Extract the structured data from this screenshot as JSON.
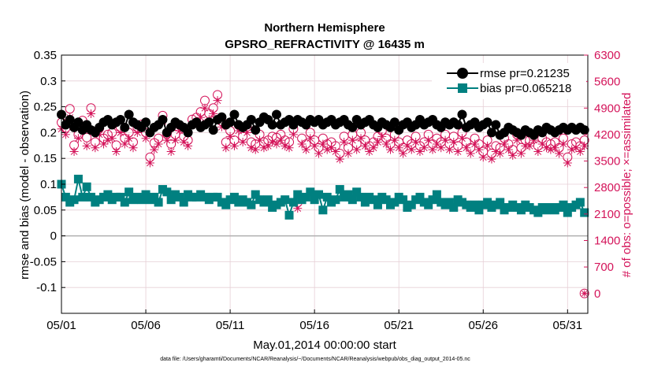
{
  "chart_data": {
    "type": "line",
    "title": "Northern Hemisphere",
    "subtitle": "GPSRO_REFRACTIVITY @ 16435 m",
    "xlabel": "May.01,2014 00:00:00 start",
    "ylabel": "rmse and bias (model - observation)",
    "y2label": "# of obs: o=possible; ×=assimilated",
    "xlim": [
      0,
      31.2
    ],
    "ylim": [
      -0.15,
      0.35
    ],
    "y2lim": [
      -525,
      6300
    ],
    "x_ticks": [
      0,
      5,
      10,
      15,
      20,
      25,
      30
    ],
    "x_tick_labels": [
      "05/01",
      "05/06",
      "05/11",
      "05/16",
      "05/21",
      "05/26",
      "05/31"
    ],
    "y_ticks": [
      -0.1,
      -0.05,
      0,
      0.05,
      0.1,
      0.15,
      0.2,
      0.25,
      0.3,
      0.35
    ],
    "y_tick_labels": [
      "-0.1",
      "-0.05",
      "0",
      "0.05",
      "0.1",
      "0.15",
      "0.2",
      "0.25",
      "0.3",
      "0.35"
    ],
    "y2_ticks": [
      0,
      700,
      1400,
      2100,
      2800,
      3500,
      4200,
      4900,
      5600,
      6300
    ],
    "y2_tick_labels": [
      "0",
      "700",
      "1400",
      "2100",
      "2800",
      "3500",
      "4200",
      "4900",
      "5600",
      "6300"
    ],
    "grid": true,
    "legend_position": "top-right",
    "x": [
      0.0,
      0.25,
      0.5,
      0.75,
      1.0,
      1.25,
      1.5,
      1.75,
      2.0,
      2.25,
      2.5,
      2.75,
      3.0,
      3.25,
      3.5,
      3.75,
      4.0,
      4.25,
      4.5,
      4.75,
      5.0,
      5.25,
      5.5,
      5.75,
      6.0,
      6.25,
      6.5,
      6.75,
      7.0,
      7.25,
      7.5,
      7.75,
      8.0,
      8.25,
      8.5,
      8.75,
      9.0,
      9.25,
      9.5,
      9.75,
      10.0,
      10.25,
      10.5,
      10.75,
      11.0,
      11.25,
      11.5,
      11.75,
      12.0,
      12.25,
      12.5,
      12.75,
      13.0,
      13.25,
      13.5,
      13.75,
      14.0,
      14.25,
      14.5,
      14.75,
      15.0,
      15.25,
      15.5,
      15.75,
      16.0,
      16.25,
      16.5,
      16.75,
      17.0,
      17.25,
      17.5,
      17.75,
      18.0,
      18.25,
      18.5,
      18.75,
      19.0,
      19.25,
      19.5,
      19.75,
      20.0,
      20.25,
      20.5,
      20.75,
      21.0,
      21.25,
      21.5,
      21.75,
      22.0,
      22.25,
      22.5,
      22.75,
      23.0,
      23.25,
      23.5,
      23.75,
      24.0,
      24.25,
      24.5,
      24.75,
      25.0,
      25.25,
      25.5,
      25.75,
      26.0,
      26.25,
      26.5,
      26.75,
      27.0,
      27.25,
      27.5,
      27.75,
      28.0,
      28.25,
      28.5,
      28.75,
      29.0,
      29.25,
      29.5,
      29.75,
      30.0,
      30.25,
      30.5,
      30.75,
      31.0
    ],
    "series": [
      {
        "name": "rmse pr=0.21235",
        "axis": "left",
        "color": "#000000",
        "marker": "circle",
        "values": [
          0.235,
          0.215,
          0.225,
          0.21,
          0.22,
          0.205,
          0.215,
          0.205,
          0.2,
          0.21,
          0.22,
          0.225,
          0.215,
          0.22,
          0.225,
          0.21,
          0.235,
          0.22,
          0.215,
          0.21,
          0.22,
          0.2,
          0.21,
          0.215,
          0.225,
          0.2,
          0.21,
          0.22,
          0.215,
          0.21,
          0.2,
          0.215,
          0.22,
          0.21,
          0.215,
          0.22,
          0.205,
          0.225,
          0.23,
          0.215,
          0.22,
          0.235,
          0.215,
          0.21,
          0.215,
          0.225,
          0.205,
          0.22,
          0.23,
          0.225,
          0.215,
          0.235,
          0.215,
          0.22,
          0.225,
          0.215,
          0.225,
          0.22,
          0.215,
          0.225,
          0.22,
          0.225,
          0.215,
          0.22,
          0.225,
          0.215,
          0.22,
          0.225,
          0.215,
          0.21,
          0.225,
          0.215,
          0.22,
          0.225,
          0.215,
          0.21,
          0.22,
          0.215,
          0.21,
          0.22,
          0.205,
          0.215,
          0.22,
          0.21,
          0.215,
          0.225,
          0.215,
          0.22,
          0.225,
          0.215,
          0.21,
          0.22,
          0.215,
          0.22,
          0.215,
          0.235,
          0.21,
          0.215,
          0.22,
          0.21,
          0.215,
          0.22,
          0.2,
          0.215,
          0.195,
          0.2,
          0.21,
          0.205,
          0.2,
          0.195,
          0.205,
          0.2,
          0.195,
          0.205,
          0.2,
          0.21,
          0.205,
          0.2,
          0.205,
          0.21,
          0.205,
          0.21,
          0.205,
          0.21,
          0.205
        ]
      },
      {
        "name": "bias pr=0.065218",
        "axis": "left",
        "color": "#008080",
        "marker": "square",
        "values": [
          0.1,
          0.075,
          0.065,
          0.07,
          0.11,
          0.075,
          0.095,
          0.075,
          0.065,
          0.07,
          0.075,
          0.08,
          0.07,
          0.075,
          0.075,
          0.065,
          0.085,
          0.07,
          0.075,
          0.07,
          0.08,
          0.07,
          0.075,
          0.065,
          0.09,
          0.085,
          0.07,
          0.08,
          0.075,
          0.065,
          0.08,
          0.075,
          0.075,
          0.08,
          0.075,
          0.07,
          0.075,
          0.075,
          0.065,
          0.06,
          0.07,
          0.075,
          0.065,
          0.07,
          0.065,
          0.06,
          0.08,
          0.07,
          0.065,
          0.07,
          0.055,
          0.06,
          0.065,
          0.07,
          0.04,
          0.065,
          0.08,
          0.07,
          0.075,
          0.085,
          0.07,
          0.08,
          0.05,
          0.075,
          0.065,
          0.07,
          0.09,
          0.075,
          0.08,
          0.07,
          0.085,
          0.075,
          0.065,
          0.075,
          0.07,
          0.06,
          0.075,
          0.07,
          0.06,
          0.065,
          0.075,
          0.07,
          0.055,
          0.06,
          0.07,
          0.075,
          0.065,
          0.06,
          0.07,
          0.08,
          0.065,
          0.06,
          0.065,
          0.055,
          0.07,
          0.065,
          0.06,
          0.055,
          0.06,
          0.05,
          0.06,
          0.065,
          0.055,
          0.06,
          0.065,
          0.05,
          0.055,
          0.06,
          0.055,
          0.05,
          0.06,
          0.055,
          0.05,
          0.045,
          0.055,
          0.05,
          0.055,
          0.05,
          0.055,
          0.06,
          0.045,
          0.055,
          0.06,
          0.065,
          0.045
        ]
      },
      {
        "name": "possible",
        "axis": "right",
        "color": "#d4145a",
        "marker": "open-circle",
        "values": [
          4520,
          4370,
          4880,
          3920,
          4200,
          4570,
          4120,
          4900,
          4000,
          4370,
          4100,
          4200,
          4250,
          3920,
          4380,
          4100,
          4250,
          4000,
          4380,
          4470,
          4250,
          3600,
          3980,
          4100,
          4700,
          4220,
          3950,
          4200,
          4450,
          4150,
          4050,
          4600,
          4650,
          4800,
          5100,
          4750,
          4900,
          5250,
          4550,
          4000,
          4300,
          4050,
          4450,
          4150,
          4400,
          4000,
          3950,
          4200,
          4000,
          4050,
          4150,
          4120,
          4200,
          4050,
          4000,
          4350,
          2400,
          4100,
          3950,
          4250,
          4050,
          3850,
          4100,
          3950,
          4000,
          3900,
          3700,
          4150,
          3850,
          4200,
          3950,
          4250,
          4050,
          3900,
          4000,
          4150,
          4300,
          4100,
          3950,
          4200,
          4000,
          3850,
          4050,
          3950,
          4150,
          3900,
          4000,
          4200,
          3950,
          4100,
          4000,
          4200,
          3950,
          4150,
          3900,
          4250,
          4000,
          3850,
          4100,
          3950,
          3750,
          4050,
          3700,
          3900,
          3850,
          4100,
          3950,
          3800,
          4200,
          3850,
          4050,
          4050,
          4200,
          3900,
          4100,
          4000,
          3950,
          4000,
          3850,
          4100,
          3600,
          3950,
          4000,
          3900,
          4050
        ]
      },
      {
        "name": "assimilated",
        "axis": "right",
        "color": "#d4145a",
        "marker": "asterisk",
        "values": [
          4350,
          4200,
          4650,
          3750,
          4100,
          4450,
          3900,
          4750,
          3850,
          4200,
          3950,
          4050,
          4100,
          3750,
          4250,
          3950,
          4100,
          3850,
          4250,
          4350,
          4100,
          3450,
          3800,
          3950,
          4550,
          4050,
          3750,
          4050,
          4300,
          4000,
          3900,
          4450,
          4500,
          4650,
          4900,
          4600,
          4750,
          5100,
          4400,
          3850,
          4150,
          3900,
          4300,
          4000,
          4250,
          3850,
          3800,
          4050,
          3850,
          3900,
          4000,
          3950,
          4050,
          3900,
          3850,
          4200,
          2250,
          3950,
          3800,
          4100,
          3900,
          3700,
          3950,
          3800,
          3850,
          3750,
          3550,
          4000,
          3700,
          4050,
          3800,
          4100,
          3900,
          3750,
          3850,
          4000,
          4150,
          3950,
          3800,
          4050,
          3850,
          3700,
          3900,
          3800,
          4000,
          3750,
          3850,
          4050,
          3800,
          3950,
          3850,
          4050,
          3800,
          4000,
          3750,
          4100,
          3850,
          3700,
          3950,
          3800,
          3600,
          3900,
          3550,
          3750,
          3700,
          3950,
          3800,
          3650,
          4050,
          3700,
          3900,
          3900,
          4050,
          3750,
          3950,
          3850,
          3800,
          3850,
          3700,
          3950,
          3450,
          3800,
          3850,
          3750,
          3900
        ]
      }
    ],
    "legend": [
      {
        "label": "rmse pr=0.21235",
        "color": "#000000",
        "marker": "circle"
      },
      {
        "label": "bias pr=0.065218",
        "color": "#008080",
        "marker": "square"
      }
    ],
    "extra_points": [
      {
        "x": 31.0,
        "y2": 0,
        "marker": "circle-asterisk",
        "color": "#d4145a"
      }
    ],
    "footer": "data file: /Users/gharamti/Documents/NCAR/Reanalysis/~/Documents/NCAR/Reanalysis/webpub/obs_diag_output_2014-05.nc"
  }
}
